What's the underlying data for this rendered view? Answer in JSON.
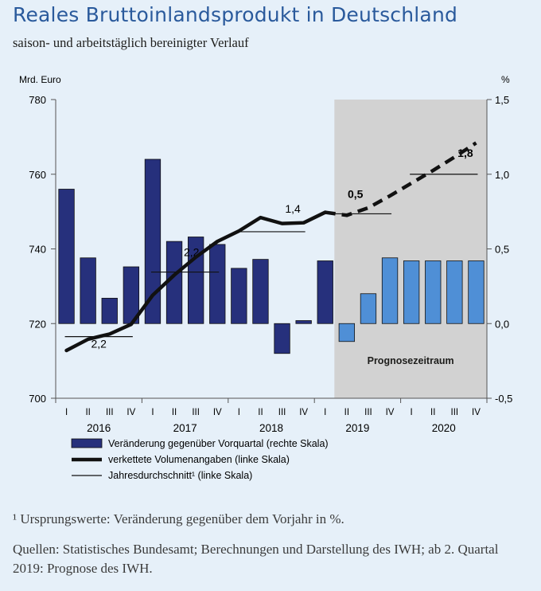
{
  "title": "Reales Bruttoinlandsprodukt in Deutschland",
  "subtitle": "saison- und arbeitstäglich bereinigter Verlauf",
  "footnote": "¹ Ursprungswerte: Veränderung gegenüber dem Vorjahr in %.",
  "source": "Quellen: Statistisches Bundesamt; Berechnungen und Darstellung des IWH; ab 2. Quartal 2019: Prognose des IWH.",
  "colors": {
    "bar_actual": "#26307c",
    "bar_forecast": "#4f8fd6",
    "forecast_bg": "#d2d2d2",
    "line": "#111111"
  },
  "chart_data": {
    "type": "bar",
    "left_axis_label": "Mrd. Euro",
    "right_axis_label": "%",
    "left_ylim": [
      700,
      780
    ],
    "left_ticks": [
      "700",
      "720",
      "740",
      "760",
      "780"
    ],
    "right_ylim": [
      -0.5,
      1.5
    ],
    "right_ticks": [
      "-0,5",
      "0,0",
      "0,5",
      "1,0",
      "1,5"
    ],
    "quarters": [
      "I",
      "II",
      "III",
      "IV",
      "I",
      "II",
      "III",
      "IV",
      "I",
      "II",
      "III",
      "IV",
      "I",
      "II",
      "III",
      "IV",
      "I",
      "II",
      "III",
      "IV"
    ],
    "years": [
      "2016",
      "2017",
      "2018",
      "2019",
      "2020"
    ],
    "forecast_start_index": 13,
    "forecast_label": "Prognosezeitraum",
    "series": [
      {
        "name": "Veränderung gegenüber Vorquartal (rechte Skala)",
        "type": "bar",
        "values": [
          0.9,
          0.44,
          0.17,
          0.38,
          1.1,
          0.55,
          0.58,
          0.53,
          0.37,
          0.43,
          -0.2,
          0.02,
          0.42,
          -0.12,
          0.2,
          0.44,
          0.42,
          0.42,
          0.42,
          0.42
        ]
      },
      {
        "name": "verkettete Volumenangaben (linke Skala)",
        "type": "line",
        "values": [
          712.8,
          715.8,
          717.2,
          719.8,
          727.6,
          733.0,
          737.8,
          742.0,
          744.8,
          748.4,
          746.8,
          747.0,
          749.8,
          749.0,
          751.0,
          754.2,
          757.6,
          761.0,
          764.6,
          768.4
        ]
      },
      {
        "name": "Jahresdurchschnitt¹ (linke Skala)",
        "type": "annual",
        "values": [
          716.5,
          733.8,
          744.6,
          749.4,
          760.0
        ],
        "labels": [
          "2,2",
          "2,2",
          "1,4",
          "0,5",
          "1,8"
        ]
      }
    ]
  }
}
